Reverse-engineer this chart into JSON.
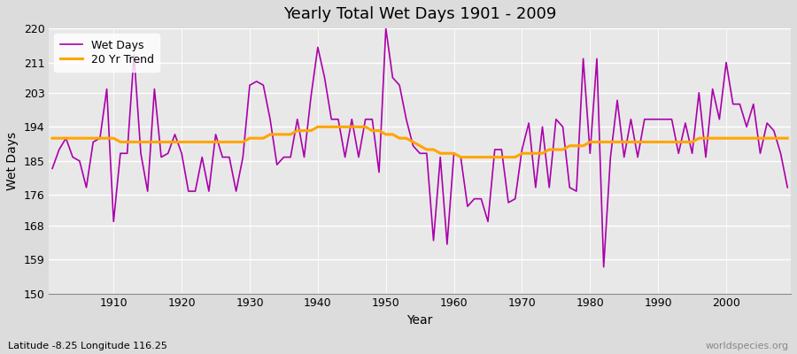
{
  "title": "Yearly Total Wet Days 1901 - 2009",
  "xlabel": "Year",
  "ylabel": "Wet Days",
  "subtitle": "Latitude -8.25 Longitude 116.25",
  "watermark": "worldspecies.org",
  "ylim": [
    150,
    220
  ],
  "yticks": [
    150,
    159,
    168,
    176,
    185,
    194,
    203,
    211,
    220
  ],
  "legend_wet_days": "Wet Days",
  "legend_trend": "20 Yr Trend",
  "wet_days_color": "#AA00AA",
  "trend_color": "#FFA500",
  "bg_color": "#dcdcdc",
  "plot_bg_color": "#e8e8e8",
  "years": [
    1901,
    1902,
    1903,
    1904,
    1905,
    1906,
    1907,
    1908,
    1909,
    1910,
    1911,
    1912,
    1913,
    1914,
    1915,
    1916,
    1917,
    1918,
    1919,
    1920,
    1921,
    1922,
    1923,
    1924,
    1925,
    1926,
    1927,
    1928,
    1929,
    1930,
    1931,
    1932,
    1933,
    1934,
    1935,
    1936,
    1937,
    1938,
    1939,
    1940,
    1941,
    1942,
    1943,
    1944,
    1945,
    1946,
    1947,
    1948,
    1949,
    1950,
    1951,
    1952,
    1953,
    1954,
    1955,
    1956,
    1957,
    1958,
    1959,
    1960,
    1961,
    1962,
    1963,
    1964,
    1965,
    1966,
    1967,
    1968,
    1969,
    1970,
    1971,
    1972,
    1973,
    1974,
    1975,
    1976,
    1977,
    1978,
    1979,
    1980,
    1981,
    1982,
    1983,
    1984,
    1985,
    1986,
    1987,
    1988,
    1989,
    1990,
    1991,
    1992,
    1993,
    1994,
    1995,
    1996,
    1997,
    1998,
    1999,
    2000,
    2001,
    2002,
    2003,
    2004,
    2005,
    2006,
    2007,
    2008,
    2009
  ],
  "wet_days": [
    183,
    188,
    191,
    186,
    185,
    178,
    190,
    191,
    204,
    169,
    187,
    187,
    213,
    187,
    177,
    204,
    186,
    187,
    192,
    187,
    177,
    177,
    186,
    177,
    192,
    186,
    186,
    177,
    186,
    205,
    206,
    205,
    196,
    184,
    186,
    186,
    196,
    186,
    202,
    215,
    207,
    196,
    196,
    186,
    196,
    186,
    196,
    196,
    182,
    220,
    207,
    205,
    196,
    189,
    187,
    187,
    164,
    186,
    163,
    187,
    186,
    173,
    175,
    175,
    169,
    188,
    188,
    174,
    175,
    188,
    195,
    178,
    194,
    178,
    196,
    194,
    178,
    177,
    212,
    187,
    212,
    157,
    186,
    201,
    186,
    196,
    186,
    196,
    196,
    196,
    196,
    196,
    187,
    195,
    187,
    203,
    186,
    204,
    196,
    211,
    200,
    200,
    194,
    200,
    187,
    195,
    193,
    187,
    178
  ],
  "trend": [
    191,
    191,
    191,
    191,
    191,
    191,
    191,
    191,
    191,
    191,
    190,
    190,
    190,
    190,
    190,
    190,
    190,
    190,
    190,
    190,
    190,
    190,
    190,
    190,
    190,
    190,
    190,
    190,
    190,
    191,
    191,
    191,
    192,
    192,
    192,
    192,
    193,
    193,
    193,
    194,
    194,
    194,
    194,
    194,
    194,
    194,
    194,
    193,
    193,
    192,
    192,
    191,
    191,
    190,
    189,
    188,
    188,
    187,
    187,
    187,
    186,
    186,
    186,
    186,
    186,
    186,
    186,
    186,
    186,
    187,
    187,
    187,
    187,
    188,
    188,
    188,
    189,
    189,
    189,
    190,
    190,
    190,
    190,
    190,
    190,
    190,
    190,
    190,
    190,
    190,
    190,
    190,
    190,
    190,
    190,
    191,
    191,
    191,
    191,
    191,
    191,
    191,
    191,
    191,
    191,
    191,
    191,
    191,
    191
  ]
}
